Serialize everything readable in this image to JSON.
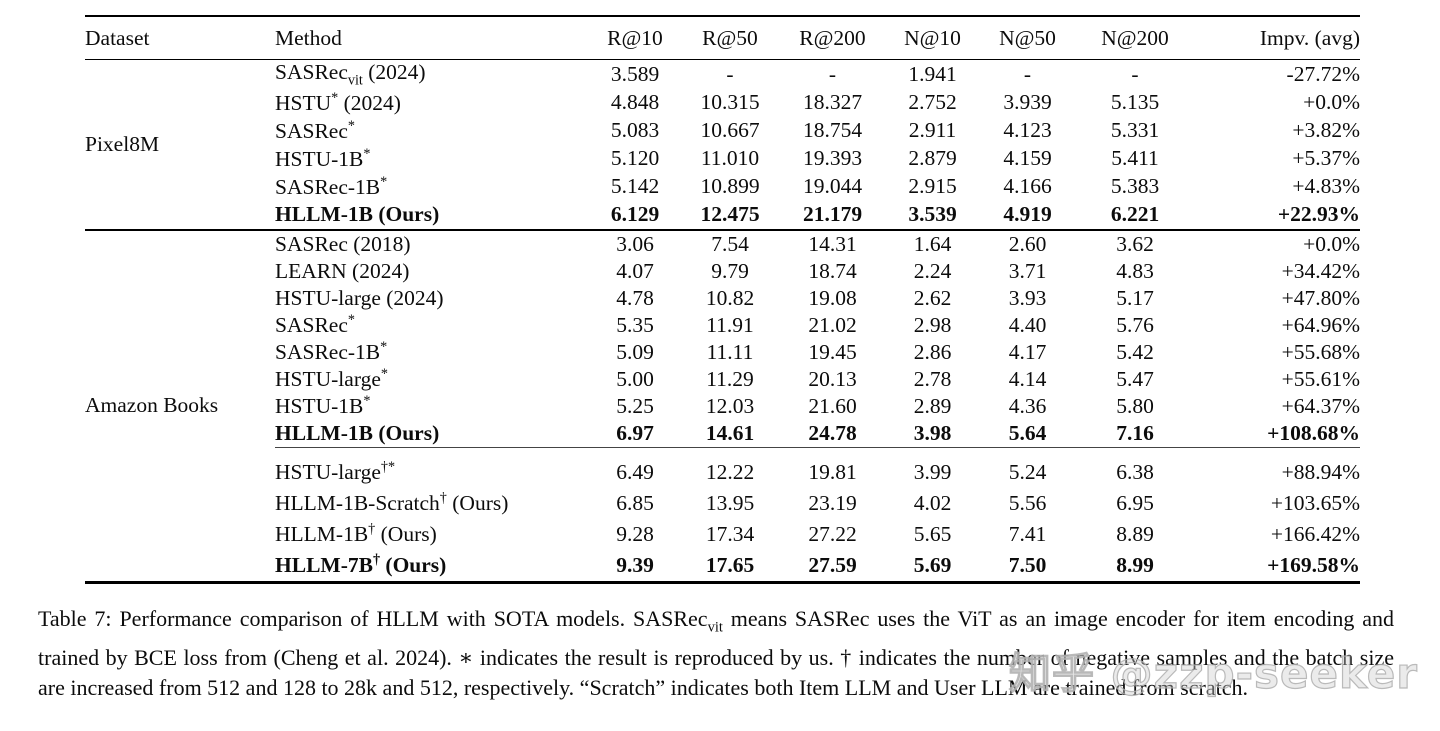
{
  "table": {
    "columns": [
      {
        "key": "dataset",
        "label": "Dataset"
      },
      {
        "key": "method",
        "label": "Method"
      },
      {
        "key": "r10",
        "label": "R@10"
      },
      {
        "key": "r50",
        "label": "R@50"
      },
      {
        "key": "r200",
        "label": "R@200"
      },
      {
        "key": "n10",
        "label": "N@10"
      },
      {
        "key": "n50",
        "label": "N@50"
      },
      {
        "key": "n200",
        "label": "N@200"
      },
      {
        "key": "impv",
        "label": "Impv. (avg)"
      }
    ],
    "sections": [
      {
        "dataset": "Pixel8M",
        "groups": [
          {
            "rows": [
              {
                "method": "SASRec~vit~ (2024)",
                "values": [
                  "3.589",
                  "-",
                  "-",
                  "1.941",
                  "-",
                  "-",
                  "-27.72%"
                ],
                "bold": false
              },
              {
                "method": "HSTU^*^ (2024)",
                "values": [
                  "4.848",
                  "10.315",
                  "18.327",
                  "2.752",
                  "3.939",
                  "5.135",
                  "+0.0%"
                ],
                "bold": false
              },
              {
                "method": "SASRec^*^",
                "values": [
                  "5.083",
                  "10.667",
                  "18.754",
                  "2.911",
                  "4.123",
                  "5.331",
                  "+3.82%"
                ],
                "bold": false
              },
              {
                "method": "HSTU-1B^*^",
                "values": [
                  "5.120",
                  "11.010",
                  "19.393",
                  "2.879",
                  "4.159",
                  "5.411",
                  "+5.37%"
                ],
                "bold": false
              },
              {
                "method": "SASRec-1B^*^",
                "values": [
                  "5.142",
                  "10.899",
                  "19.044",
                  "2.915",
                  "4.166",
                  "5.383",
                  "+4.83%"
                ],
                "bold": false
              },
              {
                "method": "HLLM-1B (Ours)",
                "values": [
                  "6.129",
                  "12.475",
                  "21.179",
                  "3.539",
                  "4.919",
                  "6.221",
                  "+22.93%"
                ],
                "bold": true
              }
            ]
          }
        ]
      },
      {
        "dataset": "Amazon Books",
        "groups": [
          {
            "compact": true,
            "rows": [
              {
                "method": "SASRec (2018)",
                "values": [
                  "3.06",
                  "7.54",
                  "14.31",
                  "1.64",
                  "2.60",
                  "3.62",
                  "+0.0%"
                ],
                "bold": false
              },
              {
                "method": "LEARN (2024)",
                "values": [
                  "4.07",
                  "9.79",
                  "18.74",
                  "2.24",
                  "3.71",
                  "4.83",
                  "+34.42%"
                ],
                "bold": false
              },
              {
                "method": "HSTU-large (2024)",
                "values": [
                  "4.78",
                  "10.82",
                  "19.08",
                  "2.62",
                  "3.93",
                  "5.17",
                  "+47.80%"
                ],
                "bold": false
              },
              {
                "method": "SASRec^*^",
                "values": [
                  "5.35",
                  "11.91",
                  "21.02",
                  "2.98",
                  "4.40",
                  "5.76",
                  "+64.96%"
                ],
                "bold": false
              },
              {
                "method": "SASRec-1B^*^",
                "values": [
                  "5.09",
                  "11.11",
                  "19.45",
                  "2.86",
                  "4.17",
                  "5.42",
                  "+55.68%"
                ],
                "bold": false
              },
              {
                "method": "HSTU-large^*^",
                "values": [
                  "5.00",
                  "11.29",
                  "20.13",
                  "2.78",
                  "4.14",
                  "5.47",
                  "+55.61%"
                ],
                "bold": false
              },
              {
                "method": "HSTU-1B^*^",
                "values": [
                  "5.25",
                  "12.03",
                  "21.60",
                  "2.89",
                  "4.36",
                  "5.80",
                  "+64.37%"
                ],
                "bold": false
              },
              {
                "method": "HLLM-1B (Ours)",
                "values": [
                  "6.97",
                  "14.61",
                  "24.78",
                  "3.98",
                  "5.64",
                  "7.16",
                  "+108.68%"
                ],
                "bold": true
              }
            ]
          },
          {
            "divider": true,
            "tall": true,
            "rows": [
              {
                "method": "HSTU-large^†*^",
                "values": [
                  "6.49",
                  "12.22",
                  "19.81",
                  "3.99",
                  "5.24",
                  "6.38",
                  "+88.94%"
                ],
                "bold": false
              },
              {
                "method": "HLLM-1B-Scratch^†^ (Ours)",
                "values": [
                  "6.85",
                  "13.95",
                  "23.19",
                  "4.02",
                  "5.56",
                  "6.95",
                  "+103.65%"
                ],
                "bold": false
              },
              {
                "method": "HLLM-1B^†^ (Ours)",
                "values": [
                  "9.28",
                  "17.34",
                  "27.22",
                  "5.65",
                  "7.41",
                  "8.89",
                  "+166.42%"
                ],
                "bold": false
              },
              {
                "method": "HLLM-7B^†^ (Ours)",
                "values": [
                  "9.39",
                  "17.65",
                  "27.59",
                  "5.69",
                  "7.50",
                  "8.99",
                  "+169.58%"
                ],
                "bold": true
              }
            ]
          }
        ]
      }
    ]
  },
  "caption": {
    "text": "Table 7: Performance comparison of HLLM with SOTA models. SASRec~vit~ means SASRec uses the ViT as an image encoder for item encoding and trained by BCE loss from (Cheng et al. 2024). ∗ indicates the result is reproduced by us. † indicates the number of negative samples and the batch size are increased from 512 and 128 to 28k and 512, respectively. “Scratch” indicates both Item LLM and User LLM are trained from scratch."
  },
  "watermark": {
    "text": "知乎 @zzp-seeker"
  }
}
